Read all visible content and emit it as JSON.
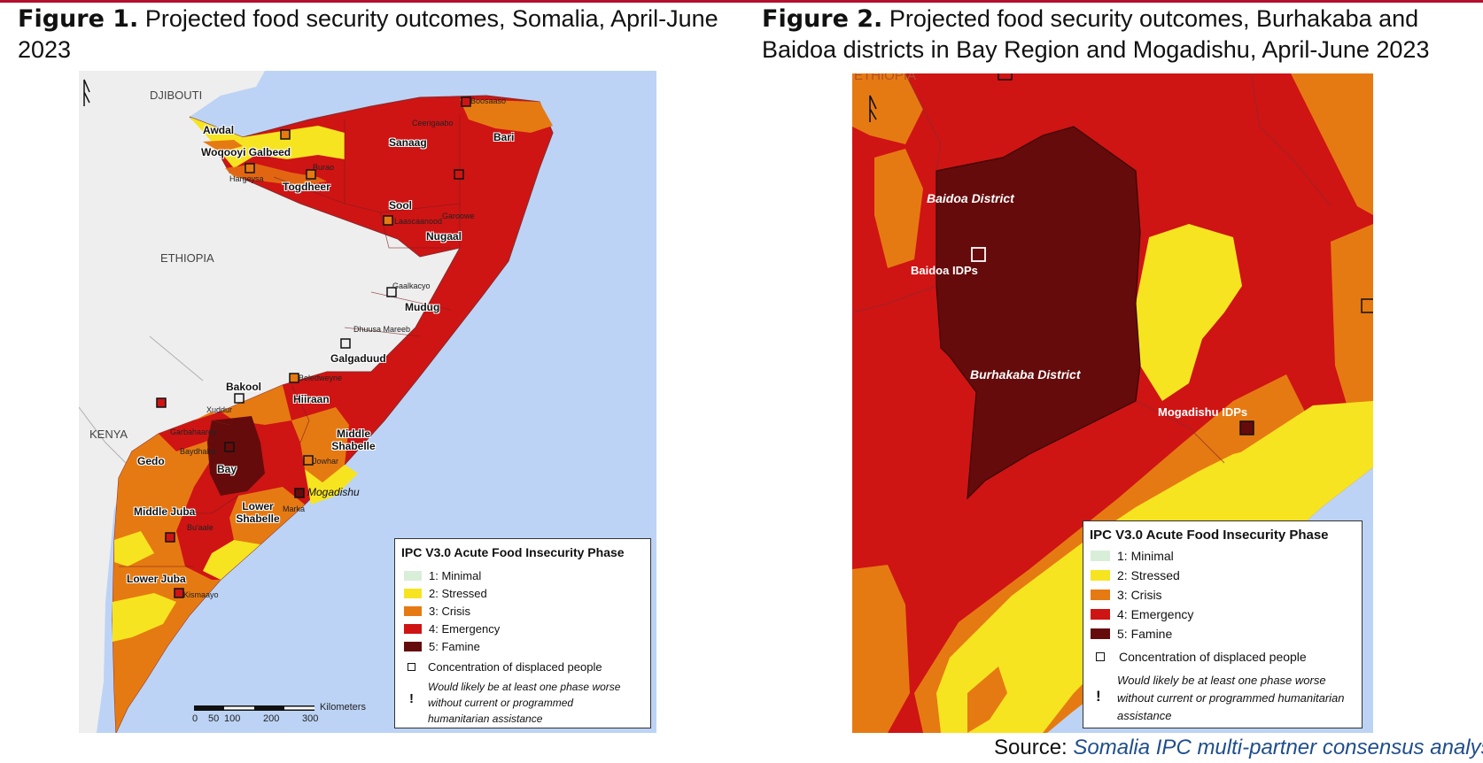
{
  "figure1": {
    "label": "Figure 1.",
    "title": "Projected food security outcomes, Somalia, April-June 2023",
    "countries": {
      "djibouti": "DJIBOUTI",
      "ethiopia": "ETHIOPIA",
      "kenya": "KENYA"
    },
    "regions": [
      "Awdal",
      "Woqooyi Galbeed",
      "Togdheer",
      "Sanaag",
      "Bari",
      "Sool",
      "Nugaal",
      "Mudug",
      "Galgaduud",
      "Hiiraan",
      "Bakool",
      "Bay",
      "Gedo",
      "Middle Shabelle",
      "Lower Shabelle",
      "Middle Juba",
      "Lower Juba"
    ],
    "towns": [
      "Boosaaso",
      "Ceerigaabo",
      "Hargeysa",
      "Burao",
      "Laascaanood",
      "Garoowe",
      "Gaalkacyo",
      "Dhuusa Mareeb",
      "Beledweyne",
      "Xuddur",
      "Garbahaarey",
      "Baydhaba",
      "Jowhar",
      "Marka",
      "Bu'aale",
      "Kismaayo"
    ],
    "capital": "Mogadishu",
    "scalebar": {
      "unit": "Kilometers",
      "ticks": [
        "0",
        "50",
        "100",
        "200",
        "300"
      ]
    }
  },
  "figure2": {
    "label": "Figure 2.",
    "title": "Projected food security outcomes, Burhakaba and Baidoa districts in Bay Region and Mogadishu, April-June 2023",
    "country": "ETHIOPIA",
    "labels": {
      "baidoa_district": "Baidoa District",
      "baidoa_idps": "Baidoa IDPs",
      "burhakaba_district": "Burhakaba District",
      "mogadishu_idps": "Mogadishu IDPs"
    }
  },
  "legend": {
    "title": "IPC V3.0 Acute Food Insecurity Phase",
    "phases": [
      {
        "label": "1: Minimal",
        "color": "#d9eed8"
      },
      {
        "label": "2: Stressed",
        "color": "#f7e421"
      },
      {
        "label": "3: Crisis",
        "color": "#e67a12"
      },
      {
        "label": "4: Emergency",
        "color": "#cf1414"
      },
      {
        "label": "5: Famine",
        "color": "#650b0b"
      }
    ],
    "idp_label": "Concentration of displaced people",
    "humanitarian_note": "Would likely be at least one phase worse without current or programmed humanitarian assistance",
    "humanitarian_mark": "!"
  },
  "source": {
    "prefix": "Source:",
    "text": "Somalia IPC multi-partner consensus analysis"
  },
  "colors": {
    "ocean": "#bcd3f5",
    "land": "#eeeeee",
    "accent_rule": "#b30f2e"
  }
}
